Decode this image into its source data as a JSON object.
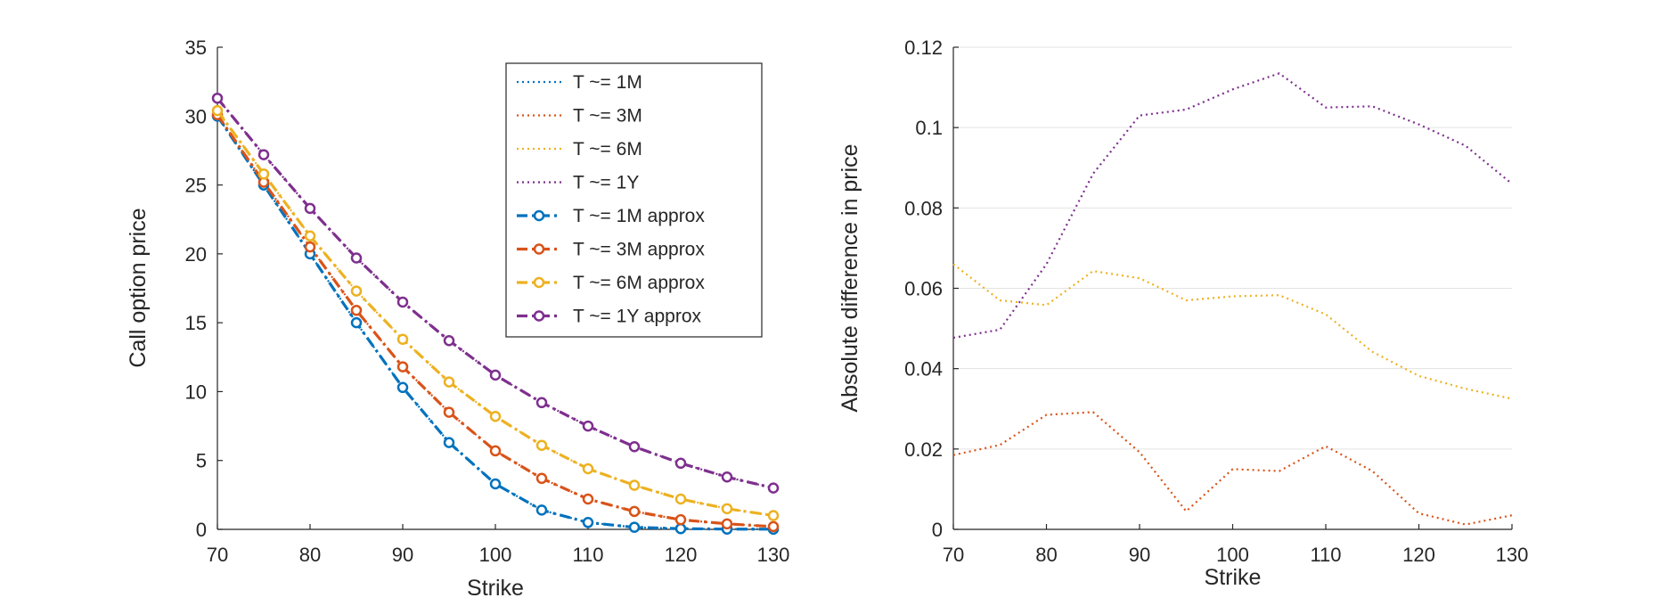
{
  "chart_data": [
    {
      "type": "line",
      "xlabel": "Strike",
      "ylabel": "Call option price",
      "xlim": [
        70,
        130
      ],
      "ylim": [
        0,
        35
      ],
      "xticks": [
        "70",
        "80",
        "90",
        "100",
        "110",
        "120",
        "130"
      ],
      "yticks": [
        "0",
        "5",
        "10",
        "15",
        "20",
        "25",
        "30",
        "35"
      ],
      "grid": false,
      "legend_location": "top-right",
      "x": [
        70,
        75,
        80,
        85,
        90,
        95,
        100,
        105,
        110,
        115,
        120,
        125,
        130
      ],
      "series": [
        {
          "name": "T ~= 1M",
          "style": "dotted",
          "color": "#0072BD",
          "values": [
            30.0,
            25.0,
            20.0,
            15.0,
            10.3,
            6.3,
            3.3,
            1.4,
            0.5,
            0.15,
            0.05,
            0.02,
            0.01
          ]
        },
        {
          "name": "T ~= 3M",
          "style": "dotted",
          "color": "#D95319",
          "values": [
            30.1,
            25.2,
            20.5,
            15.9,
            11.8,
            8.5,
            5.7,
            3.7,
            2.2,
            1.3,
            0.7,
            0.4,
            0.2
          ]
        },
        {
          "name": "T ~= 6M",
          "style": "dotted",
          "color": "#EDB120",
          "values": [
            30.4,
            25.8,
            21.3,
            17.3,
            13.8,
            10.7,
            8.2,
            6.1,
            4.4,
            3.2,
            2.2,
            1.5,
            1.0
          ]
        },
        {
          "name": "T ~= 1Y",
          "style": "dotted",
          "color": "#7E2F8E",
          "values": [
            31.3,
            27.2,
            23.3,
            19.7,
            16.5,
            13.7,
            11.2,
            9.2,
            7.5,
            6.0,
            4.8,
            3.8,
            3.0
          ]
        },
        {
          "name": "T ~= 1M approx",
          "style": "dashdot-marker",
          "color": "#0072BD",
          "values": [
            30.0,
            25.0,
            20.0,
            15.0,
            10.3,
            6.3,
            3.3,
            1.4,
            0.5,
            0.15,
            0.05,
            0.02,
            0.01
          ]
        },
        {
          "name": "T ~= 3M approx",
          "style": "dashdot-marker",
          "color": "#D95319",
          "values": [
            30.1,
            25.2,
            20.5,
            15.9,
            11.8,
            8.5,
            5.7,
            3.7,
            2.2,
            1.3,
            0.7,
            0.4,
            0.2
          ]
        },
        {
          "name": "T ~= 6M approx",
          "style": "dashdot-marker",
          "color": "#EDB120",
          "values": [
            30.4,
            25.8,
            21.3,
            17.3,
            13.8,
            10.7,
            8.2,
            6.1,
            4.4,
            3.2,
            2.2,
            1.5,
            1.0
          ]
        },
        {
          "name": "T ~= 1Y approx",
          "style": "dashdot-marker",
          "color": "#7E2F8E",
          "values": [
            31.3,
            27.2,
            23.3,
            19.7,
            16.5,
            13.7,
            11.2,
            9.2,
            7.5,
            6.0,
            4.8,
            3.8,
            3.0
          ]
        }
      ]
    },
    {
      "type": "line",
      "xlabel": "Strike",
      "ylabel": "Absolute difference in price",
      "xlim": [
        70,
        130
      ],
      "ylim": [
        0,
        0.12
      ],
      "xticks": [
        "70",
        "80",
        "90",
        "100",
        "110",
        "120",
        "130"
      ],
      "yticks": [
        "0",
        "0.02",
        "0.04",
        "0.06",
        "0.08",
        "0.1",
        "0.12"
      ],
      "grid": true,
      "x": [
        70,
        75,
        80,
        85,
        90,
        95,
        100,
        105,
        110,
        115,
        120,
        125,
        130
      ],
      "series": [
        {
          "name": "T ~= 3M",
          "style": "dotted",
          "color": "#D95319",
          "values": [
            0.0185,
            0.021,
            0.0285,
            0.0292,
            0.0192,
            0.0045,
            0.015,
            0.0145,
            0.0207,
            0.0145,
            0.004,
            0.0012,
            0.0035
          ]
        },
        {
          "name": "T ~= 6M",
          "style": "dotted",
          "color": "#EDB120",
          "values": [
            0.066,
            0.057,
            0.0558,
            0.0643,
            0.0625,
            0.057,
            0.058,
            0.0583,
            0.0535,
            0.0442,
            0.0382,
            0.035,
            0.0325
          ]
        },
        {
          "name": "T ~= 1Y",
          "style": "dotted",
          "color": "#7E2F8E",
          "values": [
            0.0477,
            0.0497,
            0.066,
            0.0885,
            0.103,
            0.1045,
            0.1095,
            0.1135,
            0.105,
            0.1053,
            0.1008,
            0.0955,
            0.086
          ]
        }
      ]
    }
  ]
}
